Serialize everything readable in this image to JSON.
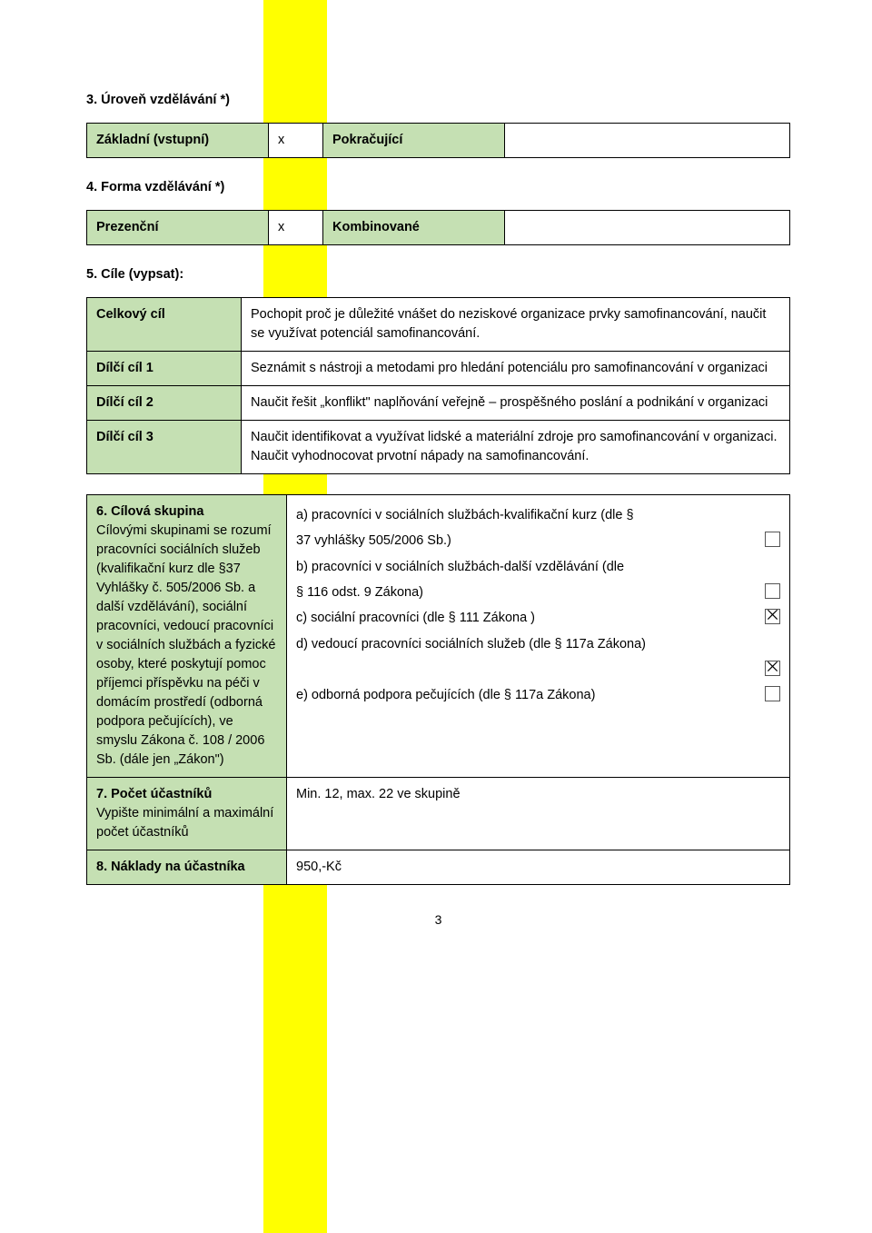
{
  "section3": {
    "heading": "3. Úroveň vzdělávání *)",
    "cells": {
      "basic_label": "Základní (vstupní)",
      "basic_x": "x",
      "cont_label": "Pokračující",
      "cont_x": ""
    }
  },
  "section4": {
    "heading": "4. Forma vzdělávání *)",
    "cells": {
      "onsite_label": "Prezenční",
      "onsite_x": "x",
      "combo_label": "Kombinované",
      "combo_x": ""
    }
  },
  "section5": {
    "heading": "5. Cíle (vypsat):",
    "rows": [
      {
        "label": "Celkový cíl",
        "text": "Pochopit proč je důležité vnášet do neziskové organizace prvky samofinancování, naučit se využívat potenciál samofinancování."
      },
      {
        "label": "Dílčí cíl 1",
        "text": "Seznámit s nástroji a metodami pro hledání potenciálu pro samofinancování v organizaci"
      },
      {
        "label": "Dílčí cíl 2",
        "text": "Naučit řešit „konflikt\" naplňování veřejně – prospěšného poslání a podnikání v organizaci"
      },
      {
        "label": "Dílčí cíl 3",
        "text": "Naučit identifikovat a využívat lidské a materiální zdroje pro samofinancování v organizaci. Naučit vyhodnocovat prvotní nápady na samofinancování."
      }
    ]
  },
  "section6": {
    "left_head": "6. Cílová skupina",
    "left_sub": "Cílovými skupinami se rozumí pracovníci sociálních služeb (kvalifikační kurz dle §37 Vyhlášky č. 505/2006 Sb. a další vzdělávání), sociální pracovníci, vedoucí pracovníci v sociálních službách a fyzické osoby, které poskytují pomoc příjemci příspěvku na péči v domácím prostředí (odborná podpora pečujících), ve smyslu Zákona č. 108 / 2006 Sb. (dále jen „Zákon\")",
    "options": [
      {
        "text_a": "a) pracovníci v sociálních službách-kvalifikační kurz (dle §",
        "text_b": "37 vyhlášky 505/2006 Sb.)",
        "checked": false,
        "cbx_on_b": true
      },
      {
        "text_a": "b) pracovníci v sociálních službách-další vzdělávání (dle",
        "text_b": "§ 116 odst. 9 Zákona)",
        "checked": false,
        "cbx_on_b": true
      },
      {
        "text_a": "c) sociální pracovníci (dle § 111 Zákona )",
        "text_b": "",
        "checked": true,
        "cbx_on_b": false
      },
      {
        "text_a": "d) vedoucí pracovníci sociálních služeb (dle § 117a Zákona)",
        "text_b": "",
        "checked": true,
        "cbx_on_b": false,
        "cbx_below": true
      },
      {
        "text_a": "e) odborná podpora pečujících  (dle § 117a Zákona)",
        "text_b": "",
        "checked": false,
        "cbx_on_b": false
      }
    ]
  },
  "section7": {
    "left_head": "7. Počet účastníků",
    "left_sub": "Vypište minimální a maximální počet účastníků",
    "value": "Min. 12, max. 22 ve skupině"
  },
  "section8": {
    "left_head": "8. Náklady na účastníka",
    "value": "950,-Kč"
  },
  "page_number": "3",
  "checkbox_glyph": "⨉"
}
